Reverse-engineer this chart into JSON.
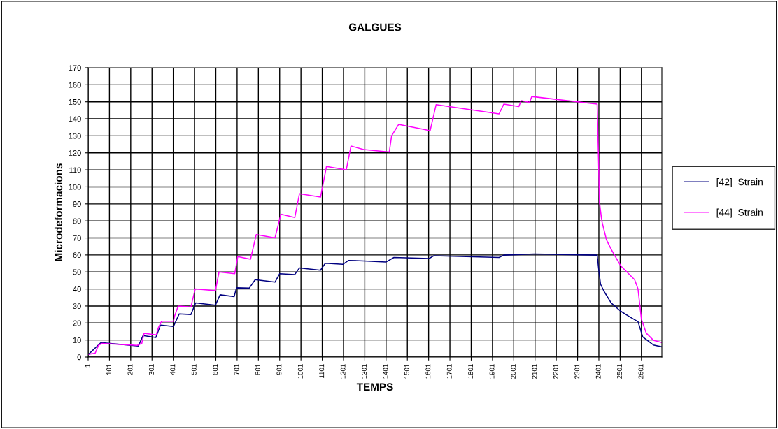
{
  "chart_data": {
    "type": "line",
    "title": "GALGUES",
    "xlabel": "TEMPS",
    "ylabel": "Microdeformacions",
    "xlim": [
      1,
      2697
    ],
    "xticks": [
      1,
      101,
      201,
      301,
      401,
      501,
      601,
      701,
      801,
      901,
      1001,
      1101,
      1201,
      1301,
      1401,
      1501,
      1601,
      1701,
      1801,
      1901,
      2001,
      2101,
      2201,
      2301,
      2401,
      2501,
      2601
    ],
    "ylim": [
      0,
      170
    ],
    "yticks": [
      0,
      10,
      20,
      30,
      40,
      50,
      60,
      70,
      80,
      90,
      100,
      110,
      120,
      130,
      140,
      150,
      160,
      170
    ],
    "grid": true,
    "legend": "right",
    "marker": "none",
    "line_style": "solid",
    "series": [
      {
        "name": "[42]  Strain",
        "color": "#000080",
        "x": [
          1,
          61,
          237,
          259,
          319,
          341,
          402,
          429,
          484,
          506,
          599,
          621,
          687,
          698,
          758,
          786,
          879,
          901,
          972,
          994,
          1093,
          1115,
          1198,
          1225,
          1296,
          1400,
          1438,
          1603,
          1625,
          1932,
          1954,
          2097,
          2393,
          2402,
          2409,
          2425,
          2459,
          2503,
          2547,
          2585,
          2607,
          2657,
          2697
        ],
        "values": [
          1.4,
          8.5,
          6.5,
          12.6,
          11.5,
          18.8,
          18,
          25.4,
          25,
          31.8,
          30.5,
          36.6,
          35.5,
          40.7,
          40.5,
          45.5,
          44,
          49,
          48.5,
          52.4,
          51,
          55.1,
          54.5,
          56.8,
          56.5,
          55.8,
          58.5,
          57.9,
          59.5,
          58.5,
          59.9,
          60.6,
          59.9,
          49.6,
          42.8,
          38.7,
          31.8,
          27,
          23.6,
          20.8,
          11.9,
          7.1,
          6
        ]
      },
      {
        "name": "[44]  Strain",
        "color": "#ff00ff",
        "x": [
          1,
          34,
          50,
          67,
          231,
          253,
          264,
          321,
          330,
          346,
          402,
          407,
          424,
          484,
          504,
          599,
          616,
          690,
          704,
          764,
          791,
          879,
          907,
          972,
          994,
          1093,
          1121,
          1214,
          1236,
          1296,
          1416,
          1427,
          1460,
          1608,
          1636,
          1932,
          1954,
          2025,
          2036,
          2075,
          2086,
          2393,
          2399,
          2404,
          2415,
          2437,
          2459,
          2503,
          2569,
          2585,
          2601,
          2624,
          2657,
          2697
        ],
        "values": [
          1.6,
          2.3,
          7,
          8,
          6.9,
          8,
          14,
          13,
          17,
          21,
          21,
          24,
          30,
          29.5,
          40,
          39,
          50,
          49,
          59,
          57.5,
          72,
          70,
          84,
          82,
          96,
          94,
          112,
          110,
          124,
          122,
          120.5,
          130,
          136.7,
          133,
          148.3,
          142.9,
          148.6,
          147.2,
          150.7,
          149.7,
          153.1,
          148.6,
          118,
          90.8,
          79.8,
          68.8,
          63.3,
          53.7,
          45.5,
          40,
          22.2,
          14,
          9.9,
          8.5
        ]
      }
    ]
  }
}
